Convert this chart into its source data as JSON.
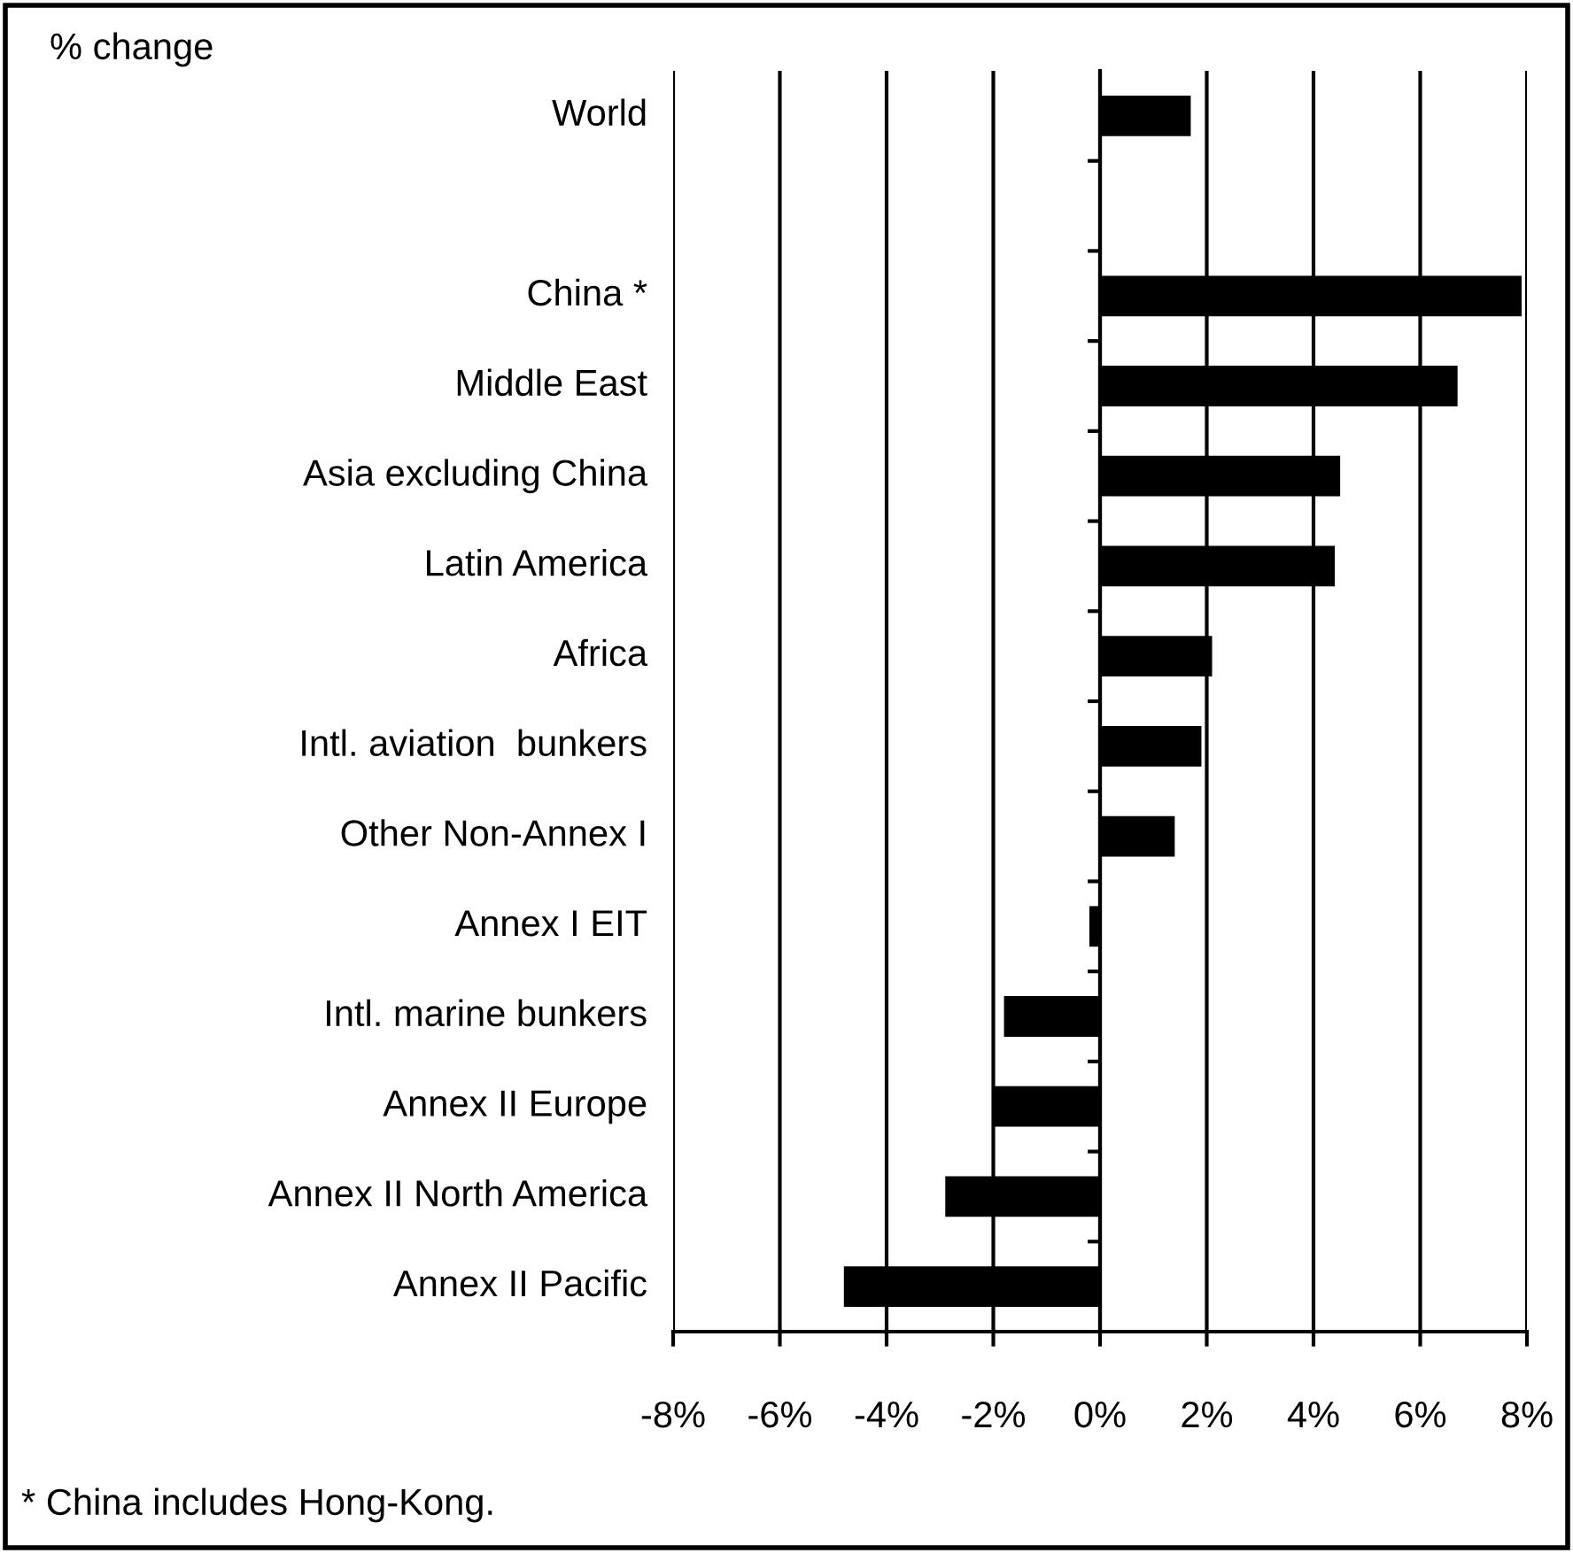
{
  "chart_data": {
    "type": "bar",
    "orientation": "horizontal",
    "ylabel": "% change",
    "categories": [
      "World",
      null,
      "China *",
      "Middle East",
      "Asia excluding China",
      "Latin America",
      "Africa",
      "Intl. aviation  bunkers",
      "Other Non-Annex I",
      "Annex I EIT",
      "Intl. marine bunkers",
      "Annex II Europe",
      "Annex II North America",
      "Annex II Pacific"
    ],
    "values": [
      1.7,
      null,
      7.9,
      6.7,
      4.5,
      4.4,
      2.1,
      1.9,
      1.4,
      -0.2,
      -1.8,
      -2.0,
      -2.9,
      -4.8
    ],
    "color": "#000000",
    "xlim": [
      -8,
      8
    ],
    "xticks": [
      {
        "value": -8,
        "label": "-8%"
      },
      {
        "value": -6,
        "label": "-6%"
      },
      {
        "value": -4,
        "label": "-4%"
      },
      {
        "value": -2,
        "label": "-2%"
      },
      {
        "value": 0,
        "label": "0%"
      },
      {
        "value": 2,
        "label": "2%"
      },
      {
        "value": 4,
        "label": "4%"
      },
      {
        "value": 6,
        "label": "6%"
      },
      {
        "value": 8,
        "label": "8%"
      }
    ],
    "grid": "x",
    "annotations": [
      "* China includes Hong-Kong."
    ]
  }
}
